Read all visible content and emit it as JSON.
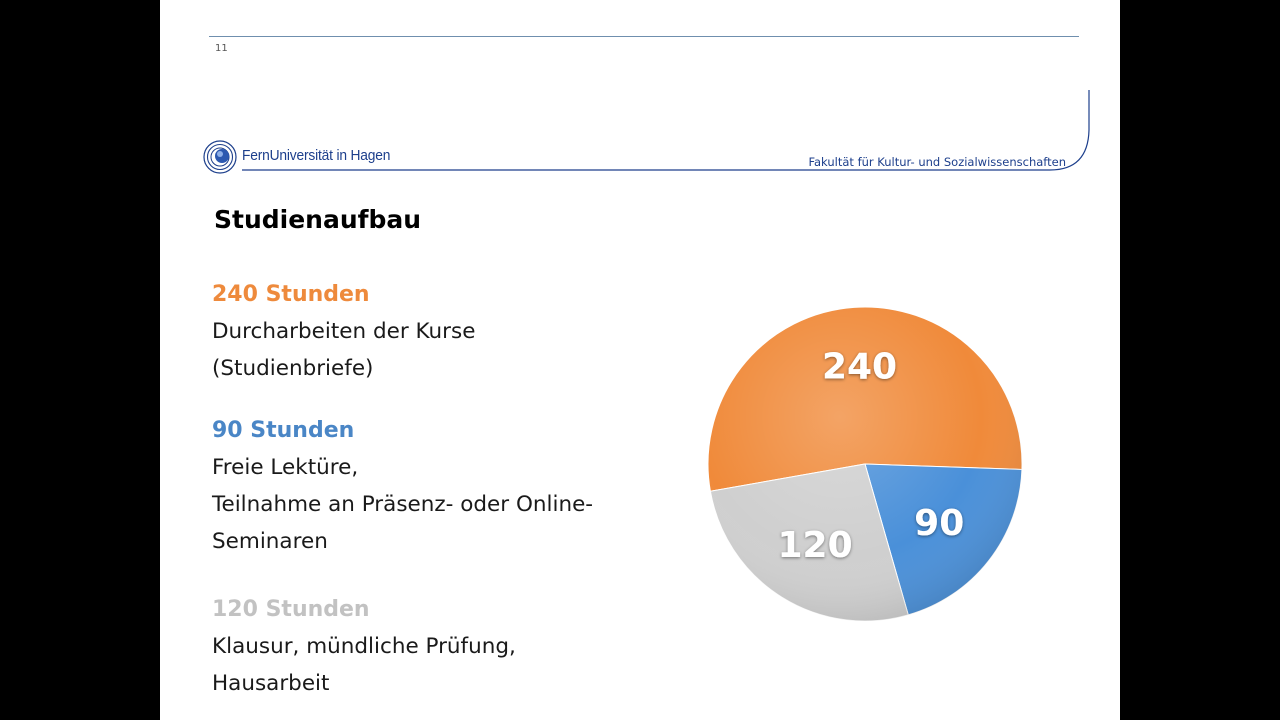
{
  "slide": {
    "page_number": "11",
    "logo_text": "FernUniversität in Hagen",
    "faculty": "Fakultät für Kultur- und Sozialwissenschaften",
    "title": "Studienaufbau"
  },
  "items": [
    {
      "heading": "240 Stunden",
      "description": "Durcharbeiten der Kurse\n(Studienbriefe)",
      "color": "#ee8a3c"
    },
    {
      "heading": "90 Stunden",
      "description": "Freie Lektüre,\nTeilnahme an Präsenz- oder Online-\nSeminaren",
      "color": "#4a86c6"
    },
    {
      "heading": "120 Stunden",
      "description": "Klausur, mündliche Prüfung,\nHausarbeit",
      "color": "#c2c2c2"
    }
  ],
  "chart_data": {
    "type": "pie",
    "slices": [
      {
        "label": "240",
        "value": 240,
        "color": "#f08a3a"
      },
      {
        "label": "90",
        "value": 90,
        "color": "#4a90d9"
      },
      {
        "label": "120",
        "value": 120,
        "color": "#cfcfcf"
      }
    ]
  }
}
